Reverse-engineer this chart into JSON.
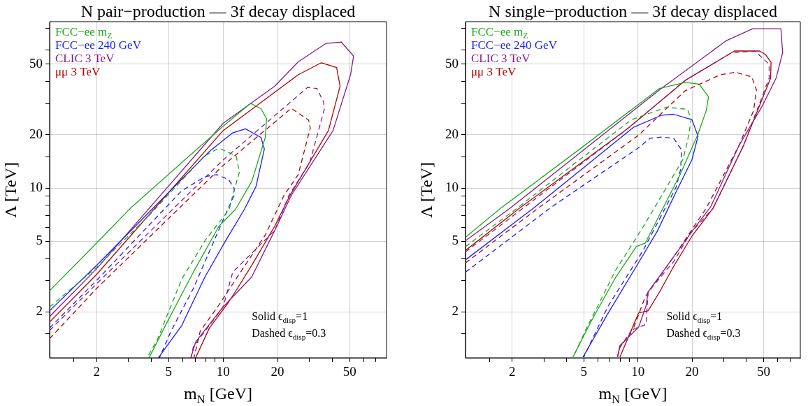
{
  "chart_data": [
    {
      "type": "line",
      "title": "N pair−production — 3f decay displaced",
      "xlabel": "m$_{N}$ [GeV]",
      "ylabel": "Λ [TeV]",
      "log": "xy",
      "grid": true,
      "legend": "top left",
      "xlim": [
        1.1,
        80
      ],
      "ylim": [
        1.1,
        87
      ],
      "xticks": [
        {
          "value": 1.5,
          "label": null
        },
        2,
        {
          "value": 3,
          "label": null
        },
        {
          "value": 4,
          "label": null
        },
        5,
        {
          "value": 6,
          "label": null
        },
        {
          "value": 7,
          "label": null
        },
        {
          "value": 8,
          "label": null
        },
        {
          "value": 9,
          "label": null
        },
        10,
        20,
        {
          "value": 30,
          "label": null
        },
        {
          "value": 40,
          "label": null
        },
        50,
        {
          "value": 60,
          "label": null
        },
        {
          "value": 70,
          "label": null
        }
      ],
      "yticks": [
        {
          "value": 1.5,
          "label": null
        },
        2,
        {
          "value": 3,
          "label": null
        },
        {
          "value": 4,
          "label": null
        },
        5,
        {
          "value": 6,
          "label": null
        },
        {
          "value": 7,
          "label": null
        },
        {
          "value": 8,
          "label": null
        },
        {
          "value": 9,
          "label": null
        },
        10,
        {
          "value": 15,
          "label": null
        },
        20,
        {
          "value": 30,
          "label": null
        },
        {
          "value": 40,
          "label": null
        },
        50,
        {
          "value": 60,
          "label": null
        },
        {
          "value": 80,
          "label": null
        }
      ],
      "annotations": [
        "Solid ϵ$_{disp}$=1",
        "Dashed ϵ$_{disp}$=0.3"
      ],
      "series": [
        {
          "name": "FCC−ee m$_{Z}$",
          "color": "#1aaa1a",
          "line_style": "solid",
          "x": [
            1.1,
            2,
            3.08,
            5.9,
            10.1,
            14.2,
            16.2,
            17.4,
            17.1,
            14.4,
            11.7,
            9.5,
            6.85,
            4.94,
            3.9
          ],
          "values": [
            2.63,
            4.89,
            7.7,
            13.9,
            22.5,
            30.1,
            28,
            24.6,
            19.3,
            10.9,
            7.57,
            6.1,
            3.35,
            1.77,
            1.1
          ]
        },
        {
          "color": "#1aaa1a",
          "line_style": "dashed",
          "x": [
            1.1,
            2,
            4,
            7.9,
            9.5,
            11.8,
            12.3,
            11.3,
            10.8,
            8,
            5.9,
            4.33,
            3.8
          ],
          "values": [
            2.13,
            3.56,
            7.2,
            15.2,
            16.8,
            15.2,
            12.3,
            9.08,
            7.57,
            5.1,
            3.05,
            1.39,
            1.1
          ]
        },
        {
          "name": "FCC−ee 240 GeV",
          "color": "#1a1aff",
          "line_style": "solid",
          "x": [
            1.1,
            2,
            4,
            8.4,
            11.3,
            13.3,
            16.2,
            16.9,
            15.2,
            13.1,
            10.4,
            7.94,
            5.9,
            4.39
          ],
          "values": [
            2.03,
            3.66,
            7.5,
            16.1,
            20.5,
            21.6,
            19.3,
            16.6,
            10.2,
            7.57,
            5.1,
            3.15,
            1.67,
            1.1
          ]
        },
        {
          "color": "#1a1aff",
          "line_style": "dashed",
          "x": [
            1.1,
            2,
            5.9,
            7.94,
            9.2,
            10.7,
            11.5,
            11.5,
            9.8,
            6.85,
            5.16,
            4.45
          ],
          "values": [
            1.62,
            3.01,
            9.64,
            11.6,
            11.9,
            11.2,
            10,
            9.08,
            6.3,
            2.71,
            1.56,
            1.1
          ]
        },
        {
          "name": "CLIC 3 TeV",
          "color": "#8a1a8a",
          "line_style": "solid",
          "x": [
            1.1,
            2,
            10,
            19.3,
            26,
            37.1,
            45,
            52.6,
            50.6,
            40.5,
            23.8,
            19.3,
            14.4,
            10,
            7.05,
            6.64
          ],
          "values": [
            1.88,
            3.5,
            23.2,
            37.6,
            51.6,
            65.6,
            66.7,
            55.6,
            43.6,
            21.1,
            9.08,
            5.77,
            3.15,
            2.13,
            1.35,
            1.1
          ]
        },
        {
          "color": "#8a1a8a",
          "line_style": "dashed",
          "x": [
            1.1,
            2,
            10,
            29.3,
            33,
            36,
            36.2,
            30.1,
            23.1,
            19.3,
            11.3,
            10,
            6.85,
            6.64
          ],
          "values": [
            1.57,
            2.88,
            14.4,
            37,
            36.5,
            30.4,
            27.7,
            13.9,
            9.08,
            5.77,
            3.35,
            2.13,
            1.27,
            1.1
          ]
        },
        {
          "name": "μμ 3 TeV",
          "color": "#b30000",
          "line_style": "solid",
          "x": [
            1.1,
            2,
            10,
            26,
            34.9,
            42.4,
            44.3,
            38.2,
            23.4,
            19.3,
            14.4,
            12,
            10.7,
            8.4,
            7.05
          ],
          "values": [
            1.75,
            3.25,
            21.1,
            43.6,
            51,
            47.9,
            37.6,
            21.1,
            9.08,
            6.1,
            3.66,
            2.71,
            2.26,
            1.62,
            1.1
          ]
        },
        {
          "color": "#b30000",
          "line_style": "dashed",
          "x": [
            1.1,
            2,
            10,
            23.8,
            29.7,
            30.3,
            26,
            21.7,
            17.1,
            12,
            9.5,
            7.48,
            6.9
          ],
          "values": [
            1.41,
            2.71,
            13.4,
            28.2,
            24.2,
            21.8,
            11.9,
            9.08,
            5.43,
            3.15,
            2.19,
            1.56,
            1.1
          ]
        }
      ]
    },
    {
      "type": "line",
      "title": "N single−production — 3f decay displaced",
      "xlabel": "m$_{N}$ [GeV]",
      "ylabel": "Λ [TeV]",
      "log": "xy",
      "grid": true,
      "legend": "top left",
      "xlim": [
        1.1,
        80
      ],
      "ylim": [
        1.1,
        87
      ],
      "xticks": [
        {
          "value": 1.5,
          "label": null
        },
        2,
        {
          "value": 3,
          "label": null
        },
        {
          "value": 4,
          "label": null
        },
        5,
        {
          "value": 6,
          "label": null
        },
        {
          "value": 7,
          "label": null
        },
        {
          "value": 8,
          "label": null
        },
        {
          "value": 9,
          "label": null
        },
        10,
        20,
        {
          "value": 30,
          "label": null
        },
        {
          "value": 40,
          "label": null
        },
        50,
        {
          "value": 60,
          "label": null
        },
        {
          "value": 70,
          "label": null
        }
      ],
      "yticks": [
        {
          "value": 1.5,
          "label": null
        },
        2,
        {
          "value": 3,
          "label": null
        },
        {
          "value": 4,
          "label": null
        },
        5,
        {
          "value": 6,
          "label": null
        },
        {
          "value": 7,
          "label": null
        },
        {
          "value": 8,
          "label": null
        },
        {
          "value": 9,
          "label": null
        },
        10,
        {
          "value": 15,
          "label": null
        },
        20,
        {
          "value": 30,
          "label": null
        },
        {
          "value": 40,
          "label": null
        },
        50,
        {
          "value": 60,
          "label": null
        },
        {
          "value": 80,
          "label": null
        }
      ],
      "annotations": [
        "Solid ϵ$_{disp}$=1",
        "Dashed ϵ$_{disp}$=0.3"
      ],
      "series": [
        {
          "name": "FCC−ee m$_{Z}$",
          "color": "#1aaa1a",
          "line_style": "solid",
          "x": [
            1.1,
            1.73,
            4.79,
            13.2,
            18.3,
            21.9,
            24.7,
            24,
            21.6,
            17.3,
            14.4,
            11,
            9.8,
            7.48,
            5.55,
            4.35
          ],
          "values": [
            5.27,
            7.7,
            16.7,
            36.5,
            39.5,
            38.6,
            32.8,
            27.4,
            20.2,
            12.1,
            8.4,
            4.89,
            4.67,
            3.1,
            1.8,
            1.11
          ]
        },
        {
          "color": "#1aaa1a",
          "line_style": "dashed",
          "x": [
            1.1,
            2.13,
            6.44,
            9.2,
            14.4,
            18.9,
            19.8,
            18.9,
            17.8,
            10.7,
            7.48,
            5.08,
            4.37
          ],
          "values": [
            4.67,
            7.7,
            18.4,
            24.3,
            28.6,
            27.8,
            24.3,
            18.5,
            14.5,
            6.04,
            3.4,
            1.55,
            1.11
          ]
        },
        {
          "name": "FCC−ee 240 GeV",
          "color": "#1a1aff",
          "line_style": "solid",
          "x": [
            1.1,
            2.63,
            9.5,
            13.6,
            15.8,
            20,
            21.6,
            20,
            16.3,
            12.8,
            9.8,
            6.84,
            4.95
          ],
          "values": [
            3.93,
            7.7,
            22.1,
            25.8,
            26.1,
            24.3,
            19.6,
            14.5,
            9.5,
            5.69,
            3.61,
            1.97,
            1.11
          ]
        },
        {
          "color": "#1a1aff",
          "line_style": "dashed",
          "x": [
            1.1,
            3.24,
            10.1,
            11.7,
            13.6,
            15.8,
            17.5,
            17.3,
            16.3,
            10.7,
            6.84,
            5
          ],
          "values": [
            3.35,
            7.7,
            16.9,
            19.1,
            19.4,
            19.1,
            16.4,
            12.8,
            10.1,
            4.45,
            2.16,
            1.11
          ]
        },
        {
          "name": "CLIC 3 TeV",
          "color": "#8a1a8a",
          "line_style": "solid",
          "x": [
            1.1,
            1.95,
            13.2,
            30.9,
            43.5,
            62.4,
            63.8,
            58.7,
            49.1,
            36.5,
            25.5,
            20,
            15.8,
            11.4,
            11.1,
            10.1,
            7.94,
            7.7
          ],
          "values": [
            5.04,
            7.7,
            35.9,
            67.8,
            79.3,
            79.3,
            58.2,
            41.8,
            29,
            17.4,
            7.9,
            5.69,
            4.08,
            2.59,
            2.16,
            1.64,
            1.29,
            1.11
          ]
        },
        {
          "color": "#8a1a8a",
          "line_style": "dashed",
          "x": [
            1.1,
            2.3,
            8.7,
            18.3,
            33.3,
            44.9,
            53.7,
            53.7,
            38.7,
            26.2,
            19.5,
            15.8,
            11.4,
            11.1,
            9.5,
            7.94,
            7.7
          ],
          "values": [
            4.36,
            7.7,
            21.5,
            40.5,
            58.2,
            59.2,
            50,
            41.8,
            17.4,
            7.7,
            5.52,
            3.84,
            2.59,
            1.7,
            1.6,
            1.26,
            1.11
          ]
        },
        {
          "name": "μμ 3 TeV",
          "color": "#b30000",
          "line_style": "solid",
          "x": [
            1.1,
            2.2,
            8.7,
            18.3,
            34.4,
            47.6,
            51.4,
            55,
            54.7,
            38.7,
            26.2,
            20,
            15.8,
            13.2,
            11.4,
            10.1,
            7.94
          ],
          "values": [
            4.44,
            7.7,
            21.5,
            40.5,
            59.4,
            59.4,
            56.5,
            51.3,
            41.8,
            17.4,
            7.7,
            5.36,
            3.61,
            2.59,
            2.03,
            1.97,
            1.11
          ]
        },
        {
          "color": "#b30000",
          "line_style": "dashed",
          "x": [
            1.1,
            2.79,
            10.1,
            18.3,
            28.7,
            34.8,
            43,
            45.6,
            44,
            36.5,
            24,
            18.9,
            15.8,
            11,
            9.5,
            7.94,
            7.7
          ],
          "values": [
            3.78,
            7.7,
            19.9,
            35.4,
            43.6,
            45.1,
            42.4,
            35.9,
            27.4,
            17.4,
            7.7,
            5.36,
            4.08,
            2.44,
            1.64,
            1.26,
            1.11
          ]
        }
      ]
    }
  ]
}
